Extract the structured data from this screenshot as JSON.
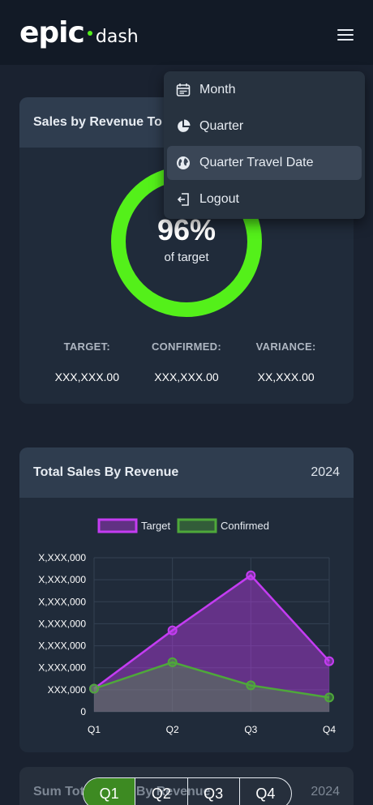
{
  "app": {
    "logo_main": "epic",
    "logo_sub": "dash"
  },
  "menu": {
    "items": [
      {
        "label": "Month",
        "icon": "calendar-icon"
      },
      {
        "label": "Quarter",
        "icon": "pie-chart-icon"
      },
      {
        "label": "Quarter Travel Date",
        "icon": "globe-icon"
      },
      {
        "label": "Logout",
        "icon": "logout-icon"
      }
    ]
  },
  "sales_card": {
    "title": "Sales by Revenue To",
    "percent": "96%",
    "percent_value": 96,
    "percent_sub": "of target",
    "target_label": "TARGET:",
    "target_value": "XXX,XXX.00",
    "confirmed_label": "CONFIRMED:",
    "confirmed_value": "XXX,XXX.00",
    "variance_label": "VARIANCE:",
    "variance_value": "XX,XXX.00",
    "ring_color": "#54f01a"
  },
  "total_card": {
    "title": "Total Sales By Revenue",
    "year": "2024"
  },
  "sum_card": {
    "title": "Sum Total Sales By Revenue",
    "year": "2024"
  },
  "quarter_tabs": {
    "tabs": [
      "Q1",
      "Q2",
      "Q3",
      "Q4"
    ],
    "active": "Q1"
  },
  "chart_data": {
    "type": "area",
    "categories": [
      "Q1",
      "Q2",
      "Q3",
      "Q4"
    ],
    "y_tick_labels": [
      "0",
      "XXX,000",
      "X,XXX,000",
      "X,XXX,000",
      "X,XXX,000",
      "X,XXX,000",
      "X,XXX,000",
      "X,XXX,000"
    ],
    "ylim": [
      0,
      7
    ],
    "series": [
      {
        "name": "Target",
        "values": [
          1.05,
          3.7,
          6.2,
          2.3
        ],
        "color": "#c43cf2"
      },
      {
        "name": "Confirmed",
        "values": [
          1.05,
          2.25,
          1.2,
          0.65
        ],
        "color": "#4ea83a"
      }
    ],
    "legend_position": "top",
    "grid": true
  }
}
